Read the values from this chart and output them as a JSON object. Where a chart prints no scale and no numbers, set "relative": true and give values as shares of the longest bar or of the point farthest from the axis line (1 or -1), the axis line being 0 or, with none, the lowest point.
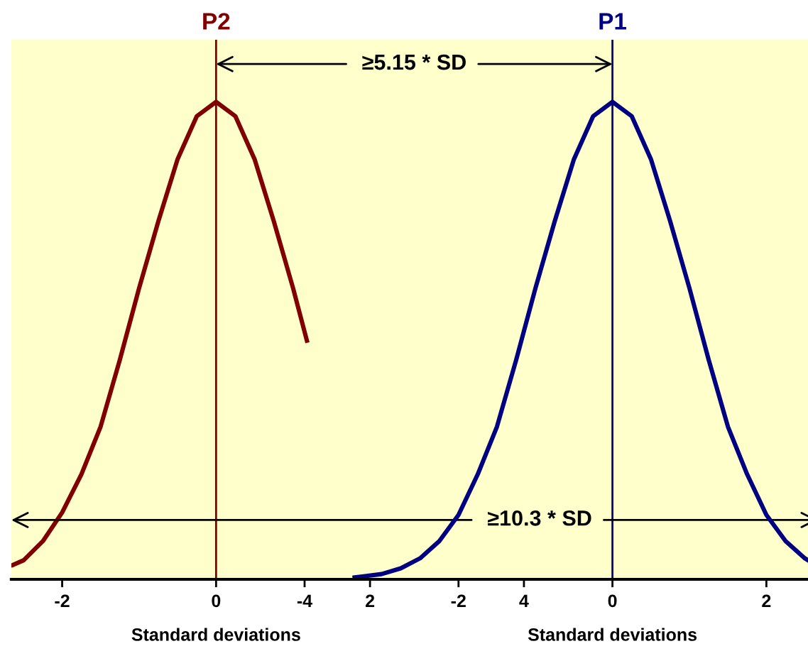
{
  "chart_data": {
    "type": "line",
    "relative": true,
    "xlabel": "Standard deviations",
    "x2label": "Standard deviations",
    "xlim": [
      -2.66,
      7.82
    ],
    "xticks": [
      -2,
      0,
      2,
      4
    ],
    "x2lim": [
      -7.81,
      2.67
    ],
    "x2ticks": [
      -4,
      -2,
      0,
      2
    ],
    "series": [
      {
        "color": "#800000",
        "x": [
          -2.64,
          -2.5,
          -2.25,
          -2,
          -1.75,
          -1.5,
          -1.25,
          -1,
          -0.75,
          -0.5,
          -0.25,
          0,
          0.25,
          0.5,
          0.75,
          1,
          1.18
        ],
        "values": [
          0.03,
          0.04,
          0.08,
          0.14,
          0.22,
          0.32,
          0.46,
          0.61,
          0.75,
          0.88,
          0.97,
          1,
          0.97,
          0.88,
          0.75,
          0.61,
          0.5
        ]
      },
      {
        "color": "#000080",
        "axis": "x2",
        "x": [
          -3.35,
          -3,
          -2.75,
          -2.5,
          -2.25,
          -2,
          -1.75,
          -1.5,
          -1.25,
          -1,
          -0.75,
          -0.5,
          -0.25,
          0,
          0.25,
          0.5,
          0.75,
          1,
          1.25,
          1.5,
          1.75,
          2,
          2.25,
          2.5,
          2.6
        ],
        "values": [
          0.004,
          0.011,
          0.023,
          0.044,
          0.08,
          0.135,
          0.22,
          0.32,
          0.46,
          0.61,
          0.75,
          0.88,
          0.97,
          1,
          0.97,
          0.88,
          0.75,
          0.61,
          0.46,
          0.32,
          0.22,
          0.135,
          0.08,
          0.044,
          0.034
        ]
      }
    ],
    "ref_lines": [
      {
        "axis": "x",
        "value": 0,
        "label": "P2",
        "color": "#800000"
      },
      {
        "axis": "x",
        "value": 5.15,
        "label": "P1",
        "color": "#000080"
      }
    ],
    "annotations": [
      "≥5.15 * SD",
      "≥10.3 * SD"
    ],
    "grid": false,
    "marker": "none",
    "line_style": "solid"
  }
}
